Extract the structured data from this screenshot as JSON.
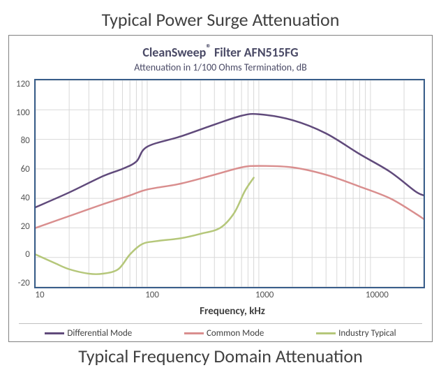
{
  "top_title": "Typical Power Surge Attenuation",
  "bottom_title": "Typical Frequency Domain Attenuation",
  "chart": {
    "type": "line",
    "title_main": "CleanSweep",
    "title_reg": "®",
    "title_rest": " Filter AFN515FG",
    "subtitle": "Attenuation in 1/100 Ohms Termination,  dB",
    "xlabel": "Frequency,  kHz",
    "x_scale": "log",
    "xlim": [
      10,
      30000
    ],
    "ylim": [
      -20,
      120
    ],
    "ytick_step": 20,
    "yticks": [
      120,
      100,
      80,
      60,
      40,
      20,
      0,
      -20
    ],
    "xticks": [
      10,
      100,
      1000,
      10000
    ],
    "background_color": "#ffffff",
    "plot_border_color": "#385d8a",
    "grid_color": "#d9d9d9",
    "grid_on": true,
    "line_width": 2.5,
    "series": [
      {
        "name": "Differential Mode",
        "color": "#604a7b",
        "x": [
          10,
          20,
          40,
          60,
          80,
          100,
          200,
          400,
          700,
          1000,
          2000,
          4000,
          8000,
          15000,
          25000,
          30000
        ],
        "y": [
          34,
          44,
          55,
          60,
          65,
          75,
          82,
          90,
          96,
          97,
          93,
          84,
          70,
          58,
          45,
          42
        ]
      },
      {
        "name": "Common Mode",
        "color": "#d98e8e",
        "x": [
          10,
          20,
          40,
          70,
          100,
          200,
          400,
          700,
          1000,
          2000,
          4000,
          8000,
          15000,
          25000,
          30000
        ],
        "y": [
          20,
          28,
          36,
          42,
          46,
          50,
          56,
          61,
          62,
          61,
          56,
          48,
          40,
          30,
          26
        ]
      },
      {
        "name": "Industry Typical",
        "color": "#b5c77a",
        "x": [
          10,
          15,
          20,
          30,
          40,
          55,
          70,
          90,
          120,
          200,
          300,
          450,
          600,
          750,
          900
        ],
        "y": [
          2,
          -4,
          -8,
          -11,
          -11,
          -8,
          2,
          9,
          11,
          13,
          16,
          20,
          30,
          45,
          54
        ]
      }
    ],
    "legend": [
      {
        "label": "Differential Mode",
        "color": "#604a7b"
      },
      {
        "label": "Common Mode",
        "color": "#d98e8e"
      },
      {
        "label": "Industry Typical",
        "color": "#b5c77a"
      }
    ]
  }
}
